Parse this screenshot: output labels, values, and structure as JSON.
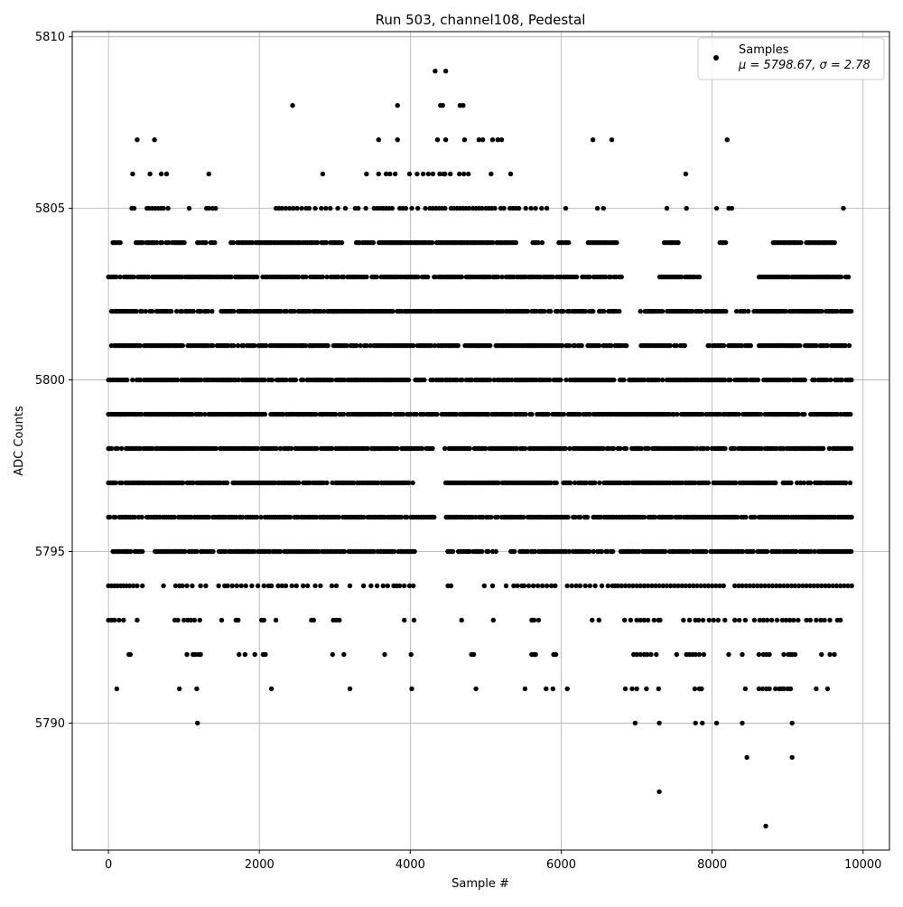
{
  "chart_data": {
    "type": "scatter",
    "title": "Run 503, channel108, Pedestal",
    "xlabel": "Sample #",
    "ylabel": "ADC Counts",
    "xlim": [
      -480,
      10350
    ],
    "ylim": [
      5786.3,
      5810.15
    ],
    "xticks": [
      0,
      2000,
      4000,
      6000,
      8000,
      10000
    ],
    "yticks": [
      5790,
      5795,
      5800,
      5805,
      5810
    ],
    "grid": true,
    "legend": {
      "position": "top-right",
      "label": "Samples",
      "stats": "μ = 5798.67, σ = 2.78"
    },
    "series": [
      {
        "name": "Samples",
        "color": "#000000",
        "n_samples": 9850,
        "levels": [
          {
            "y": 5787,
            "x": [
              8710
            ]
          },
          {
            "y": 5788,
            "x": [
              7300
            ]
          },
          {
            "y": 5789,
            "x": [
              8460,
              9060
            ]
          },
          {
            "y": 5790,
            "x": [
              1180,
              6980,
              7300,
              7780,
              7870,
              8060,
              8400,
              9060
            ]
          },
          {
            "y": 5791,
            "x": [
              110,
              940,
              1170,
              2160,
              3200,
              4020,
              4870,
              5520,
              5800,
              5890,
              6080,
              6850,
              6940,
              7000,
              7130,
              7290,
              7770,
              7830,
              7860,
              8440,
              8620,
              8670,
              8720,
              8760,
              8840,
              8890,
              8920,
              8950,
              9000,
              9040,
              9380,
              9530
            ]
          },
          {
            "y": 5792,
            "x": [
              270,
              290,
              1040,
              1120,
              1150,
              1190,
              1220,
              1730,
              1810,
              1940,
              2050,
              2080,
              2970,
              3120,
              3660,
              4010,
              4810,
              4840,
              5610,
              5640,
              5660,
              5900,
              5930,
              6960,
              7000,
              7050,
              7100,
              7140,
              7190,
              7260,
              7530,
              7660,
              7700,
              7740,
              7780,
              7830,
              7890,
              8220,
              8400,
              8620,
              8680,
              8720,
              8760,
              8950,
              9010,
              9040,
              9060,
              9100,
              9450,
              9560,
              9620
            ]
          },
          {
            "y": 5793,
            "x": [
              0,
              40,
              80,
              140,
              200,
              380,
              880,
              920,
              1000,
              1050,
              1090,
              1140,
              1210,
              1500,
              1690,
              1720,
              2030,
              2060,
              2220,
              2690,
              2720,
              2980,
              3020,
              3060,
              3920,
              4050,
              4680,
              5100,
              5610,
              5640,
              5700,
              6410,
              6500,
              6840,
              6920,
              7000,
              7050,
              7100,
              7150,
              7230,
              7290,
              7310,
              7620,
              7700,
              7780,
              7820,
              7880,
              7960,
              8020,
              8080,
              8170,
              8300,
              8360,
              8440,
              8560,
              8630,
              8680,
              8730,
              8790,
              8860,
              8930,
              8980,
              9030,
              9080,
              9140,
              9250,
              9300,
              9380,
              9440,
              9490,
              9560,
              9660,
              9700
            ]
          },
          {
            "y": 5794,
            "x": [
              0,
              40,
              80,
              120,
              160,
              200,
              240,
              280,
              330,
              380,
              450,
              730,
              890,
              940,
              980,
              1040,
              1110,
              1220,
              1290,
              1460,
              1540,
              1580,
              1640,
              1700,
              1760,
              1820,
              1900,
              1980,
              2060,
              2120,
              2160,
              2250,
              2300,
              2350,
              2430,
              2490,
              2580,
              2640,
              2740,
              2810,
              2960,
              3020,
              3200,
              3380,
              3480,
              3560,
              3640,
              3700,
              3780,
              3820,
              3860,
              3920,
              3990,
              4040,
              4500,
              4540,
              4980,
              5090,
              5270,
              5370,
              5420,
              5480,
              5510,
              5570,
              5630,
              5690,
              5750,
              5810,
              5870,
              5920,
              6080,
              6140,
              6200,
              6250,
              6320,
              6380,
              6450,
              6540,
              6620,
              6680,
              6710,
              6750,
              6800,
              6850,
              6900,
              6950,
              7000,
              7050,
              7100,
              7150,
              7200,
              7250,
              7300,
              7350,
              7400,
              7450,
              7500,
              7550,
              7600,
              7650,
              7700,
              7750,
              7800,
              7850,
              7900,
              7950,
              8000,
              8050,
              8100,
              8150,
              8300,
              8350,
              8400,
              8450,
              8500,
              8550,
              8600,
              8650,
              8700,
              8750,
              8800,
              8850,
              8900,
              8950,
              9000,
              9050,
              9100,
              9150,
              9200,
              9250,
              9300,
              9350,
              9400,
              9450,
              9500,
              9550,
              9600,
              9650,
              9700,
              9750,
              9800,
              9850
            ]
          },
          {
            "y": 5805,
            "x": [
              310,
              340,
              510,
              540,
              580,
              620,
              660,
              700,
              730,
              790,
              1070,
              1300,
              1330,
              1380,
              1420,
              2220,
              2260,
              2300,
              2350,
              2400,
              2450,
              2500,
              2560,
              2620,
              2660,
              2740,
              2820,
              2880,
              2940,
              3040,
              3140,
              3270,
              3310,
              3410,
              3520,
              3560,
              3600,
              3640,
              3680,
              3720,
              3760,
              3860,
              3900,
              3940,
              4020,
              4100,
              4200,
              4260,
              4300,
              4340,
              4380,
              4420,
              4460,
              4540,
              4580,
              4620,
              4660,
              4700,
              4740,
              4780,
              4830,
              4870,
              4910,
              4950,
              5000,
              5040,
              5080,
              5120,
              5200,
              5240,
              5320,
              5360,
              5400,
              5440,
              5530,
              5600,
              5660,
              5740,
              5810,
              6060,
              6480,
              6560,
              7400,
              7660,
              8060,
              8220,
              8260,
              9740
            ]
          },
          {
            "y": 5806,
            "x": [
              320,
              550,
              700,
              770,
              1330,
              2840,
              3420,
              3580,
              3680,
              3730,
              3800,
              3990,
              4090,
              4170,
              4240,
              4300,
              4390,
              4440,
              4460,
              4530,
              4650,
              4710,
              4770,
              5070,
              5330,
              7650
            ]
          },
          {
            "y": 5807,
            "x": [
              380,
              610,
              3580,
              3830,
              4360,
              4470,
              4720,
              4910,
              4960,
              5090,
              5160,
              5210,
              6420,
              6670,
              8200
            ]
          },
          {
            "y": 5808,
            "x": [
              2440,
              3830,
              4400,
              4430,
              4660,
              4700
            ]
          },
          {
            "y": 5809,
            "x": [
              4330,
              4470
            ]
          }
        ],
        "dense_levels": [
          {
            "y": 5795,
            "x_start": 60,
            "x_end": 9850,
            "gaps": [
              [
                460,
                600
              ],
              [
                4060,
                4470
              ],
              [
                5150,
                5330
              ]
            ]
          },
          {
            "y": 5796,
            "x_start": 0,
            "x_end": 9850,
            "gaps": [
              [
                4330,
                4450
              ]
            ]
          },
          {
            "y": 5797,
            "x_start": 0,
            "x_end": 9850,
            "gaps": [
              [
                4080,
                4460
              ]
            ]
          },
          {
            "y": 5798,
            "x_start": 0,
            "x_end": 9850,
            "gaps": [
              [
                4330,
                4450
              ]
            ]
          },
          {
            "y": 5799,
            "x_start": 0,
            "x_end": 9850,
            "gaps": []
          },
          {
            "y": 5800,
            "x_start": 0,
            "x_end": 9850,
            "gaps": []
          },
          {
            "y": 5801,
            "x_start": 40,
            "x_end": 9850,
            "gaps": [
              [
                6880,
                7050
              ],
              [
                7650,
                7900
              ],
              [
                8520,
                8620
              ]
            ]
          },
          {
            "y": 5802,
            "x_start": 40,
            "x_end": 9850,
            "gaps": [
              [
                6800,
                7050
              ],
              [
                8200,
                8320
              ]
            ]
          },
          {
            "y": 5803,
            "x_start": 0,
            "x_end": 9850,
            "gaps": [
              [
                6800,
                7300
              ],
              [
                7850,
                8600
              ]
            ]
          },
          {
            "y": 5804,
            "x_start": 60,
            "x_end": 9640,
            "gaps": [
              [
                180,
                350
              ],
              [
                1010,
                1150
              ],
              [
                1450,
                1600
              ],
              [
                3100,
                3280
              ],
              [
                5420,
                5600
              ],
              [
                5750,
                5950
              ],
              [
                6100,
                6350
              ],
              [
                6780,
                7350
              ],
              [
                7570,
                8100
              ],
              [
                8200,
                8800
              ]
            ]
          }
        ]
      }
    ]
  }
}
